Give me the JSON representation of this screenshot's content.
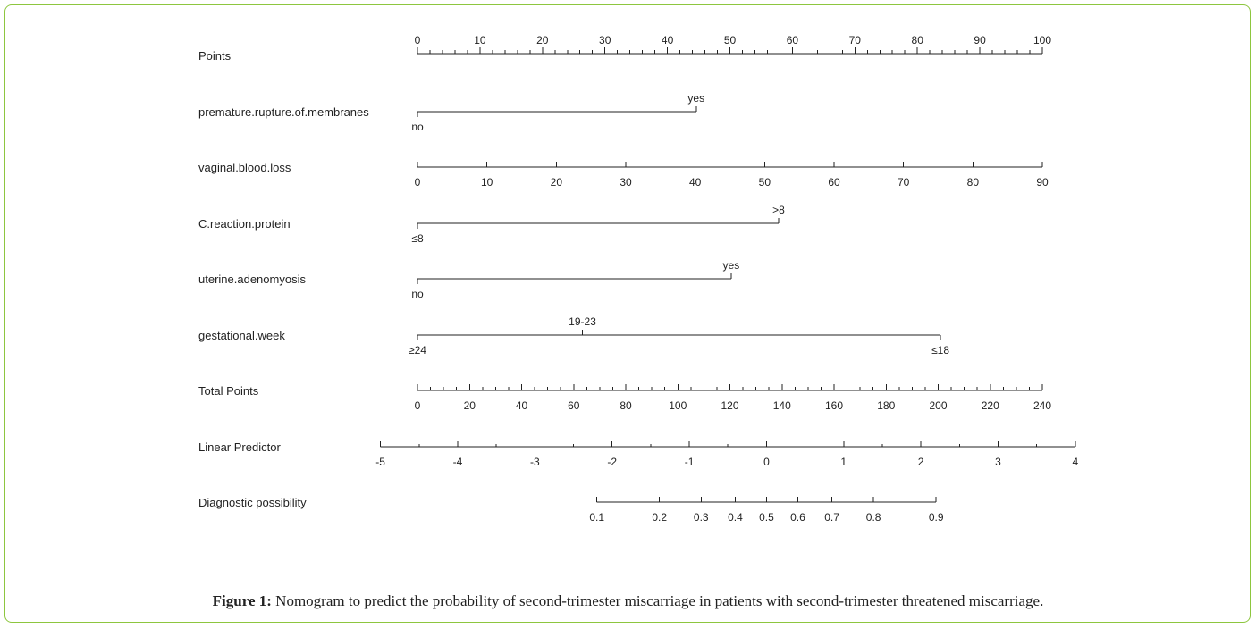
{
  "chart_data": {
    "type": "nomogram",
    "rows": [
      {
        "name": "Points",
        "scale": {
          "min": 0,
          "max": 100,
          "major_step": 10,
          "minor_step": 2,
          "labels": [
            "0",
            "10",
            "20",
            "30",
            "40",
            "50",
            "60",
            "70",
            "80",
            "90",
            "100"
          ]
        }
      },
      {
        "name": "premature.rupture.of.membranes",
        "categories": [
          {
            "label": "no",
            "points": 0
          },
          {
            "label": "yes",
            "points": 44.6
          }
        ]
      },
      {
        "name": "vaginal.blood.loss",
        "scale": {
          "min": 0,
          "max": 90,
          "major_step": 10,
          "points_min": 0,
          "points_max": 100,
          "labels": [
            "0",
            "10",
            "20",
            "30",
            "40",
            "50",
            "60",
            "70",
            "80",
            "90"
          ]
        }
      },
      {
        "name": "C.reaction.protein",
        "categories": [
          {
            "label": "≤8",
            "points": 0
          },
          {
            "label": ">8",
            "points": 57.8
          }
        ]
      },
      {
        "name": "uterine.adenomyosis",
        "categories": [
          {
            "label": "no",
            "points": 0
          },
          {
            "label": "yes",
            "points": 50.2
          }
        ]
      },
      {
        "name": "gestational.week",
        "categories": [
          {
            "label": "≥24",
            "points": 0
          },
          {
            "label": "19-23",
            "points": 26.4
          },
          {
            "label": "≤18",
            "points": 83.7
          }
        ]
      },
      {
        "name": "Total Points",
        "scale": {
          "min": 0,
          "max": 240,
          "major_step": 20,
          "minor_step": 5,
          "labels": [
            "0",
            "20",
            "40",
            "60",
            "80",
            "100",
            "120",
            "140",
            "160",
            "180",
            "200",
            "220",
            "240"
          ]
        }
      },
      {
        "name": "Linear Predictor",
        "scale": {
          "values": [
            -5,
            -4,
            -3,
            -2,
            -1,
            0,
            1,
            2,
            3,
            4
          ],
          "labels": [
            "-5",
            "-4",
            "-3",
            "-2",
            "-1",
            "0",
            "1",
            "2",
            "3",
            "4"
          ],
          "total_points_at": [
            -14.2,
            15.45,
            45.1,
            74.75,
            104.4,
            134.05,
            163.7,
            193.35,
            223.0,
            252.65
          ]
        }
      },
      {
        "name": "Diagnostic possibility",
        "scale": {
          "values": [
            0.1,
            0.2,
            0.3,
            0.4,
            0.5,
            0.6,
            0.7,
            0.8,
            0.9
          ],
          "labels": [
            "0.1",
            "0.2",
            "0.3",
            "0.4",
            "0.5",
            "0.6",
            "0.7",
            "0.8",
            "0.9"
          ]
        }
      }
    ]
  },
  "caption": {
    "label": "Figure 1:",
    "text": " Nomogram to predict the probability of second-trimester miscarriage in patients with second-trimester threatened miscarriage."
  },
  "colors": {
    "frame_border": "#8dc63f",
    "ink": "#222222"
  }
}
